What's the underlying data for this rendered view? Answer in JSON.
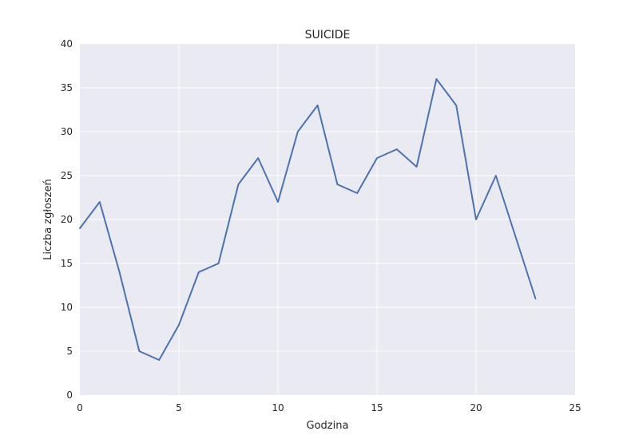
{
  "chart_data": {
    "type": "line",
    "title": "SUICIDE",
    "xlabel": "Godzina",
    "ylabel": "Liczba zgłoszeń",
    "xlim": [
      0,
      25
    ],
    "ylim": [
      0,
      40
    ],
    "xticks": [
      0,
      5,
      10,
      15,
      20,
      25
    ],
    "yticks": [
      0,
      5,
      10,
      15,
      20,
      25,
      30,
      35,
      40
    ],
    "grid": true,
    "colors": {
      "background": "#eaeaf2",
      "grid": "#ffffff",
      "line": "#4c72b0"
    },
    "series": [
      {
        "x": [
          0,
          1,
          2,
          3,
          4,
          5,
          6,
          7,
          8,
          9,
          10,
          11,
          12,
          13,
          14,
          15,
          16,
          17,
          18,
          19,
          20,
          21,
          22,
          23
        ],
        "values": [
          19,
          22,
          14,
          5,
          4,
          8,
          14,
          15,
          24,
          27,
          22,
          30,
          33,
          24,
          23,
          27,
          28,
          26,
          36,
          33,
          20,
          25,
          18,
          11
        ]
      }
    ]
  }
}
